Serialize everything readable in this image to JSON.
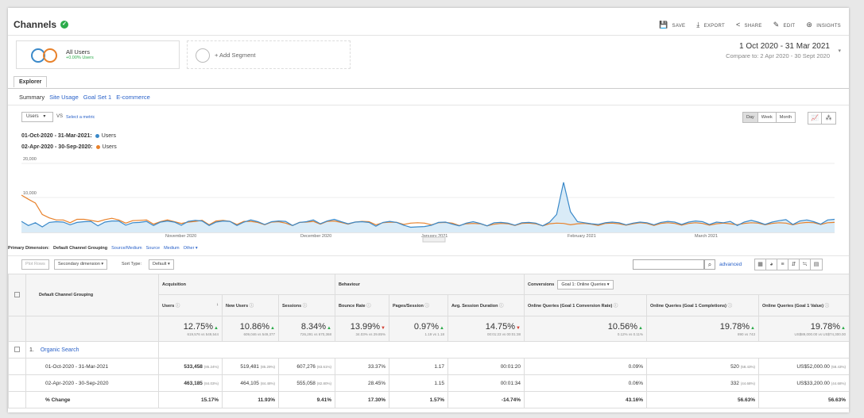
{
  "header": {
    "title": "Channels",
    "actions": [
      "SAVE",
      "EXPORT",
      "SHARE",
      "EDIT",
      "INSIGHTS"
    ]
  },
  "segments": {
    "seg1_name": "All Users",
    "seg1_sub": "+0.00% Users",
    "seg2": "+ Add Segment"
  },
  "date_range": {
    "main": "1 Oct 2020 - 31 Mar 2021",
    "compare": "Compare to: 2 Apr 2020 - 30 Sept 2020"
  },
  "tabs": {
    "explorer": "Explorer"
  },
  "subtabs": [
    "Summary",
    "Site Usage",
    "Goal Set 1",
    "E-commerce"
  ],
  "metric_controls": {
    "metric": "Users",
    "vs": "VS",
    "select": "Select a metric",
    "periods": [
      "Day",
      "Week",
      "Month"
    ]
  },
  "legend": {
    "row1_period": "01-Oct-2020 - 31-Mar-2021:",
    "row2_period": "02-Apr-2020 - 30-Sep-2020:",
    "metric_label": "Users",
    "color1": "#3a89c9",
    "color2": "#e8812a"
  },
  "chart_data": {
    "type": "area",
    "ylim": [
      0,
      20000
    ],
    "yticks": [
      "20,000",
      "10,000"
    ],
    "xticks": [
      "November 2020",
      "December 2020",
      "January 2021",
      "February 2021",
      "March 2021"
    ],
    "series": [
      {
        "name": "01-Oct-2020 - 31-Mar-2021: Users",
        "values": [
          3200,
          2000,
          2800,
          1600,
          2900,
          3100,
          3000,
          2200,
          2900,
          3100,
          3200,
          1900,
          3000,
          3300,
          3300,
          2100,
          2800,
          2900,
          3200,
          2000,
          3000,
          3300,
          3000,
          2100,
          3200,
          3500,
          3300,
          2000,
          3000,
          3300,
          3200,
          2000,
          3000,
          3600,
          3100,
          2300,
          3100,
          3300,
          3200,
          2000,
          2900,
          3100,
          3600,
          2500,
          3300,
          3800,
          3100,
          2500,
          3000,
          3100,
          2900,
          1800,
          2900,
          3200,
          2900,
          2100,
          1500,
          1600,
          1700,
          2100,
          2900,
          3000,
          2400,
          1900,
          2700,
          3100,
          2600,
          1900,
          2800,
          2900,
          2700,
          2100,
          2800,
          2900,
          2700,
          1900,
          3000,
          5200,
          14500,
          6000,
          3100,
          2800,
          2500,
          2300,
          2800,
          3000,
          2800,
          2200,
          2700,
          3000,
          2800,
          2200,
          2900,
          3200,
          3000,
          2300,
          3000,
          3300,
          3100,
          2300,
          3000,
          2800,
          3200,
          2000,
          3000,
          3500,
          3000,
          2300,
          3000,
          3400,
          3700,
          2300,
          3300,
          3600,
          3100,
          2400,
          3600,
          3800
        ]
      },
      {
        "name": "02-Apr-2020 - 30-Sep-2020: Users",
        "values": [
          10800,
          9600,
          8500,
          5200,
          4200,
          3600,
          3600,
          2800,
          3800,
          3800,
          3500,
          3100,
          3700,
          4100,
          3600,
          2700,
          3400,
          3500,
          3600,
          2400,
          3100,
          3600,
          3100,
          2600,
          3000,
          3200,
          3500,
          2200,
          3300,
          3500,
          3200,
          2300,
          3200,
          3200,
          2900,
          2200,
          3000,
          3100,
          2700,
          2000,
          2900,
          3000,
          3200,
          2400,
          3200,
          3300,
          2900,
          2400,
          3000,
          3200,
          3100,
          2200,
          2800,
          3000,
          2900,
          2300,
          2700,
          2800,
          2700,
          2200,
          2800,
          2900,
          2700,
          2000,
          2500,
          2600,
          2500,
          1900,
          2400,
          2600,
          2500,
          2000,
          2600,
          2700,
          2500,
          1900,
          2500,
          2700,
          2600,
          2200,
          2500,
          2600,
          2400,
          2000,
          2600,
          2700,
          2500,
          2100,
          2500,
          2800,
          2600,
          2000,
          2600,
          2800,
          2600,
          2100,
          2600,
          2800,
          2600,
          2100,
          2500,
          2700,
          2500,
          2200,
          2600,
          2800,
          2700,
          2200,
          2600,
          2800,
          2700,
          2200,
          2700,
          2900,
          2800,
          2300,
          2800,
          2900
        ]
      }
    ]
  },
  "primary_dimension": {
    "label": "Primary Dimension:",
    "current": "Default Channel Grouping",
    "options": [
      "Source/Medium",
      "Source",
      "Medium",
      "Other ▾"
    ]
  },
  "toolbar": {
    "plot_rows": "Plot Rows",
    "secondary": "Secondary dimension ▾",
    "sort_type": "Sort Type:",
    "default": "Default ▾",
    "advanced": "advanced"
  },
  "table": {
    "dim_header": "Default Channel Grouping",
    "groups": {
      "acq": "Acquisition",
      "beh": "Behaviour",
      "conv": "Conversions",
      "goal": "Goal 1: Online Queries"
    },
    "columns": [
      "Users",
      "New Users",
      "Sessions",
      "Bounce Rate",
      "Pages/Session",
      "Avg. Session Duration",
      "Online Queries (Goal 1 Conversion Rate)",
      "Online Queries (Goal 1 Completions)",
      "Online Queries (Goal 1 Value)"
    ],
    "totals": [
      {
        "big": "12.75%",
        "small": "619,576 vs 549,544",
        "up": true
      },
      {
        "big": "10.86%",
        "small": "609,046 vs 549,377",
        "up": true
      },
      {
        "big": "8.34%",
        "small": "726,291 vs 670,368",
        "up": true
      },
      {
        "big": "13.99%",
        "small": "34.03% vs 29.85%",
        "up": false
      },
      {
        "big": "0.97%",
        "small": "1.19 vs 1.18",
        "up": true
      },
      {
        "big": "14.75%",
        "small": "00:01:23 vs 00:01:38",
        "up": false
      },
      {
        "big": "10.56%",
        "small": "0.12% vs 0.11%",
        "up": true
      },
      {
        "big": "19.78%",
        "small": "890 vs 743",
        "up": true
      },
      {
        "big": "19.78%",
        "small": "US$89,000.00 vs US$74,300.00",
        "up": true
      }
    ],
    "channel": {
      "index": "1.",
      "name": "Organic Search"
    },
    "row_a": {
      "label": "01-Oct-2020 - 31-Mar-2021",
      "users": "533,458",
      "users_pct": "(85.24%)",
      "new_users": "519,481",
      "new_users_pct": "(85.29%)",
      "sessions": "607,276",
      "sessions_pct": "(83.61%)",
      "bounce": "33.37%",
      "pps": "1.17",
      "dur": "00:01:20",
      "cr": "0.09%",
      "comp": "520",
      "comp_pct": "(58.43%)",
      "val": "US$52,000.00",
      "val_pct": "(58.43%)"
    },
    "row_b": {
      "label": "02-Apr-2020 - 30-Sep-2020",
      "users": "463,185",
      "users_pct": "(84.03%)",
      "new_users": "464,105",
      "new_users_pct": "(84.48%)",
      "sessions": "555,058",
      "sessions_pct": "(82.80%)",
      "bounce": "28.45%",
      "pps": "1.15",
      "dur": "00:01:34",
      "cr": "0.06%",
      "comp": "332",
      "comp_pct": "(44.68%)",
      "val": "US$33,200.00",
      "val_pct": "(44.68%)"
    },
    "row_c": {
      "label": "% Change",
      "users": "15.17%",
      "new_users": "11.93%",
      "sessions": "9.41%",
      "bounce": "17.30%",
      "pps": "1.57%",
      "dur": "-14.74%",
      "cr": "43.16%",
      "comp": "56.63%",
      "val": "56.63%"
    }
  }
}
